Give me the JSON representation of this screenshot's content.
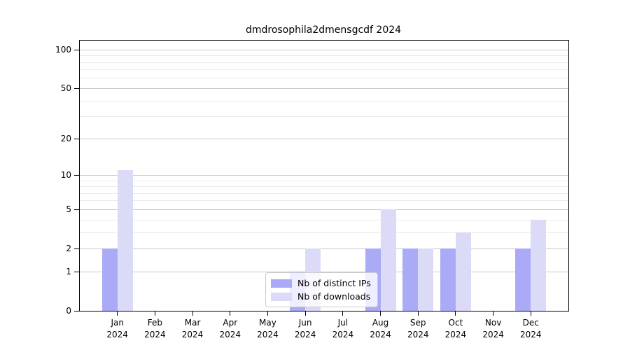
{
  "figure": {
    "title": "dmdrosophila2dmensgcdf 2024"
  },
  "chart_data": {
    "type": "bar",
    "title": "dmdrosophila2dmensgcdf 2024",
    "categories": [
      "Jan",
      "Feb",
      "Mar",
      "Apr",
      "May",
      "Jun",
      "Jul",
      "Aug",
      "Sep",
      "Oct",
      "Nov",
      "Dec"
    ],
    "category_year": "2024",
    "series": [
      {
        "name": "Nb of distinct IPs",
        "color": "#aaaaf7",
        "values": [
          2,
          0,
          0,
          0,
          0,
          1,
          0,
          2,
          2,
          2,
          0,
          2
        ]
      },
      {
        "name": "Nb of downloads",
        "color": "#dbdbf8",
        "values": [
          11,
          0,
          0,
          0,
          0,
          2,
          0,
          5,
          2,
          3,
          0,
          4
        ]
      }
    ],
    "yscale": "log1p",
    "ylim": [
      0,
      118
    ],
    "yticks": [
      0,
      1,
      2,
      5,
      10,
      20,
      50,
      100
    ],
    "minor_yticks": [
      3,
      4,
      6,
      7,
      8,
      9,
      30,
      40,
      60,
      70,
      80,
      90
    ],
    "xlabel": "",
    "ylabel": "",
    "grid": true,
    "legend": {
      "position": "inside-bottom-center",
      "labels": [
        "Nb of distinct IPs",
        "Nb of downloads"
      ]
    }
  },
  "colors": {
    "background": "#ffffff",
    "spine": "#000000",
    "major_grid": "#c9c9c9",
    "minor_grid": "#ebebeb",
    "text": "#000000",
    "legend_border": "#cccccc"
  }
}
